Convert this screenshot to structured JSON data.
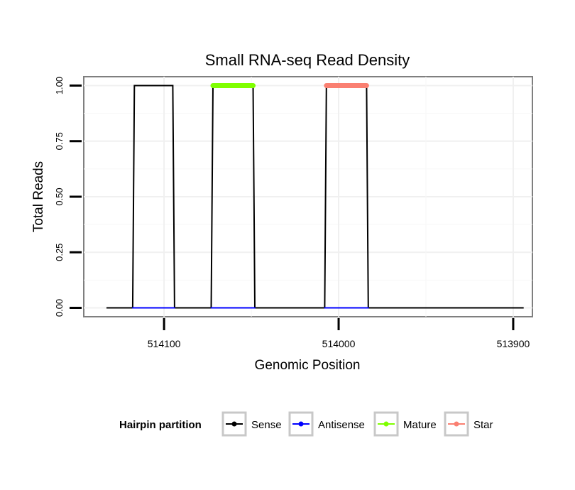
{
  "chart_data": {
    "type": "line",
    "title": "Small RNA-seq Read Density",
    "xlabel": "Genomic Position",
    "ylabel": "Total Reads",
    "x_reversed": true,
    "xlim": [
      514146,
      513889
    ],
    "ylim": [
      -0.04,
      1.04
    ],
    "x_ticks": [
      514100,
      514000,
      513900
    ],
    "x_tick_labels": [
      "514100",
      "514000",
      "513900"
    ],
    "y_ticks": [
      0,
      0.25,
      0.5,
      0.75,
      1
    ],
    "y_tick_labels": [
      "0.00",
      "0.25",
      "0.50",
      "0.75",
      "1.00"
    ],
    "grid": true,
    "legend": {
      "title": "Hairpin partition",
      "position": "bottom",
      "entries": [
        {
          "label": "Sense",
          "color": "#000000"
        },
        {
          "label": "Antisense",
          "color": "#0000ff"
        },
        {
          "label": "Mature",
          "color": "#7fff00"
        },
        {
          "label": "Star",
          "color": "#fa8072"
        }
      ]
    },
    "series": [
      {
        "name": "Sense",
        "color": "#000000",
        "x": [
          514133,
          514118,
          514117,
          514095,
          514094,
          514073,
          514072,
          514049,
          514048,
          514008,
          514007,
          513984,
          513983,
          513894
        ],
        "y": [
          0,
          0,
          1,
          1,
          0,
          0,
          1,
          1,
          0,
          0,
          1,
          1,
          0,
          0
        ]
      },
      {
        "name": "Antisense",
        "color": "#0000ff",
        "x": [
          514118,
          514094,
          514073,
          514048,
          514008,
          513983
        ],
        "y": [
          0,
          0,
          0,
          0,
          0,
          0
        ]
      },
      {
        "name": "Mature",
        "color": "#7fff00",
        "x": [
          514072,
          514049
        ],
        "y": [
          1,
          1
        ]
      },
      {
        "name": "Star",
        "color": "#fa8072",
        "x": [
          514007,
          513984
        ],
        "y": [
          1,
          1
        ]
      }
    ]
  }
}
